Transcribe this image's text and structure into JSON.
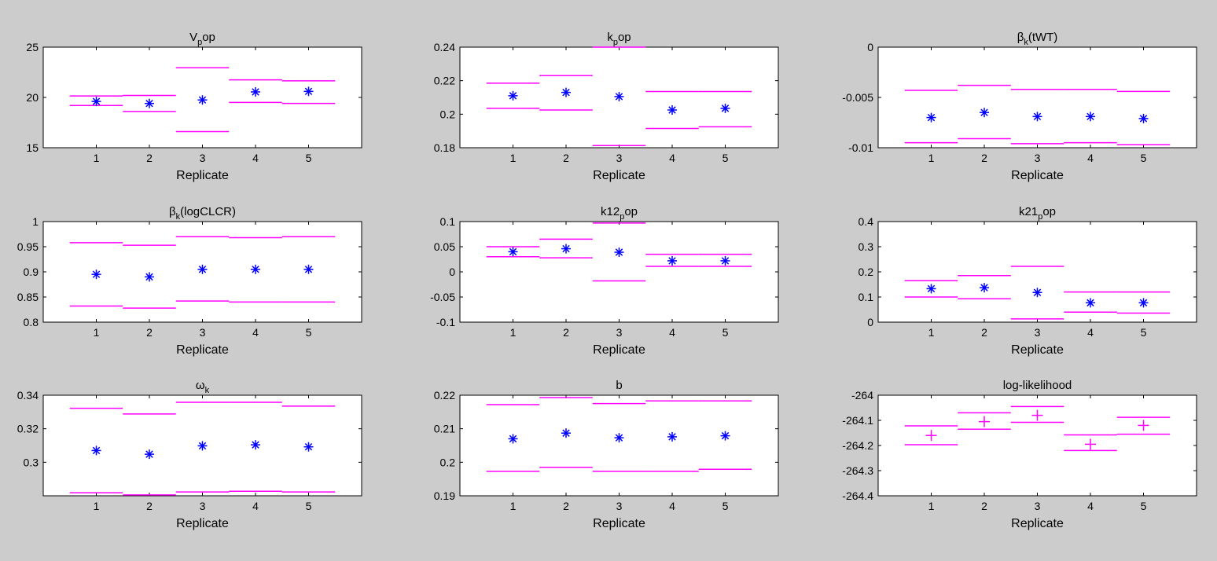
{
  "figure": {
    "background": "#cccccc",
    "axes_color": "#ffffff",
    "estimate_color": "#0000ff",
    "bound_color": "#ff00ff"
  },
  "chart_data": [
    {
      "type": "errorbar",
      "title_main": "V",
      "title_sub": "p",
      "title_rest": "op",
      "xlabel": "Replicate",
      "ylabel": "",
      "categories": [
        "1",
        "2",
        "3",
        "4",
        "5"
      ],
      "ylim": [
        15,
        25
      ],
      "yticks": [
        "15",
        "20",
        "25"
      ],
      "ytick_values": [
        15,
        20,
        25
      ],
      "marker": "asterisk",
      "series": [
        {
          "name": "estimate",
          "values": [
            19.6,
            19.4,
            19.75,
            20.55,
            20.6
          ]
        },
        {
          "name": "lower",
          "values": [
            19.2,
            18.6,
            16.6,
            19.5,
            19.4
          ]
        },
        {
          "name": "upper",
          "values": [
            20.15,
            20.2,
            22.95,
            21.75,
            21.65
          ]
        }
      ]
    },
    {
      "type": "errorbar",
      "title_main": "k",
      "title_sub": "p",
      "title_rest": "op",
      "xlabel": "Replicate",
      "ylabel": "",
      "categories": [
        "1",
        "2",
        "3",
        "4",
        "5"
      ],
      "ylim": [
        0.18,
        0.24
      ],
      "yticks": [
        "0.18",
        "0.2",
        "0.22",
        "0.24"
      ],
      "ytick_values": [
        0.18,
        0.2,
        0.22,
        0.24
      ],
      "marker": "asterisk",
      "series": [
        {
          "name": "estimate",
          "values": [
            0.211,
            0.213,
            0.2105,
            0.2025,
            0.2035
          ]
        },
        {
          "name": "lower",
          "values": [
            0.2035,
            0.2025,
            0.1813,
            0.1915,
            0.1925
          ]
        },
        {
          "name": "upper",
          "values": [
            0.2185,
            0.223,
            0.24,
            0.2135,
            0.2135
          ]
        }
      ]
    },
    {
      "type": "errorbar",
      "title_main": "β",
      "title_sub": "k",
      "title_rest": "(tWT)",
      "xlabel": "Replicate",
      "ylabel": "",
      "categories": [
        "1",
        "2",
        "3",
        "4",
        "5"
      ],
      "ylim": [
        -0.01,
        0
      ],
      "yticks": [
        "-0.01",
        "-0.005",
        "0"
      ],
      "ytick_values": [
        -0.01,
        -0.005,
        0
      ],
      "marker": "asterisk",
      "series": [
        {
          "name": "estimate",
          "values": [
            -0.007,
            -0.0065,
            -0.0069,
            -0.0069,
            -0.0071
          ]
        },
        {
          "name": "lower",
          "values": [
            -0.0095,
            -0.0091,
            -0.0096,
            -0.0095,
            -0.0097
          ]
        },
        {
          "name": "upper",
          "values": [
            -0.0043,
            -0.0038,
            -0.0042,
            -0.0042,
            -0.0044
          ]
        }
      ]
    },
    {
      "type": "errorbar",
      "title_main": "β",
      "title_sub": "k",
      "title_rest": "(logCLCR)",
      "xlabel": "Replicate",
      "ylabel": "",
      "categories": [
        "1",
        "2",
        "3",
        "4",
        "5"
      ],
      "ylim": [
        0.8,
        1
      ],
      "yticks": [
        "0.8",
        "0.85",
        "0.9",
        "0.95",
        "1"
      ],
      "ytick_values": [
        0.8,
        0.85,
        0.9,
        0.95,
        1
      ],
      "marker": "asterisk",
      "series": [
        {
          "name": "estimate",
          "values": [
            0.895,
            0.89,
            0.905,
            0.905,
            0.905
          ]
        },
        {
          "name": "lower",
          "values": [
            0.832,
            0.828,
            0.842,
            0.84,
            0.84
          ]
        },
        {
          "name": "upper",
          "values": [
            0.958,
            0.953,
            0.97,
            0.968,
            0.97
          ]
        }
      ]
    },
    {
      "type": "errorbar",
      "title_main": "k12",
      "title_sub": "p",
      "title_rest": "op",
      "xlabel": "Replicate",
      "ylabel": "",
      "categories": [
        "1",
        "2",
        "3",
        "4",
        "5"
      ],
      "ylim": [
        -0.1,
        0.1
      ],
      "yticks": [
        "-0.1",
        "-0.05",
        "0",
        "0.05",
        "0.1"
      ],
      "ytick_values": [
        -0.1,
        -0.05,
        0,
        0.05,
        0.1
      ],
      "marker": "asterisk",
      "series": [
        {
          "name": "estimate",
          "values": [
            0.04,
            0.046,
            0.039,
            0.022,
            0.022
          ]
        },
        {
          "name": "lower",
          "values": [
            0.03,
            0.028,
            -0.018,
            0.011,
            0.011
          ]
        },
        {
          "name": "upper",
          "values": [
            0.05,
            0.065,
            0.097,
            0.035,
            0.035
          ]
        }
      ]
    },
    {
      "type": "errorbar",
      "title_main": "k21",
      "title_sub": "p",
      "title_rest": "op",
      "xlabel": "Replicate",
      "ylabel": "",
      "categories": [
        "1",
        "2",
        "3",
        "4",
        "5"
      ],
      "ylim": [
        0,
        0.4
      ],
      "yticks": [
        "0",
        "0.1",
        "0.2",
        "0.3",
        "0.4"
      ],
      "ytick_values": [
        0,
        0.1,
        0.2,
        0.3,
        0.4
      ],
      "marker": "asterisk",
      "series": [
        {
          "name": "estimate",
          "values": [
            0.133,
            0.137,
            0.118,
            0.077,
            0.077
          ]
        },
        {
          "name": "lower",
          "values": [
            0.1,
            0.093,
            0.013,
            0.04,
            0.036
          ]
        },
        {
          "name": "upper",
          "values": [
            0.165,
            0.185,
            0.222,
            0.12,
            0.12
          ]
        }
      ]
    },
    {
      "type": "errorbar",
      "title_main": "ω",
      "title_sub": "k",
      "title_rest": "",
      "xlabel": "Replicate",
      "ylabel": "",
      "categories": [
        "1",
        "2",
        "3",
        "4",
        "5"
      ],
      "ylim": [
        0.28,
        0.34
      ],
      "yticks": [
        "0.3",
        "0.32",
        "0.34"
      ],
      "ytick_values": [
        0.3,
        0.32,
        0.34
      ],
      "marker": "asterisk",
      "series": [
        {
          "name": "estimate",
          "values": [
            0.307,
            0.3048,
            0.3098,
            0.3104,
            0.3092
          ]
        },
        {
          "name": "lower",
          "values": [
            0.2818,
            0.2805,
            0.2823,
            0.2827,
            0.2823
          ]
        },
        {
          "name": "upper",
          "values": [
            0.3322,
            0.3288,
            0.3358,
            0.3358,
            0.3335
          ]
        }
      ]
    },
    {
      "type": "errorbar",
      "title_main": "b",
      "title_sub": "",
      "title_rest": "",
      "xlabel": "Replicate",
      "ylabel": "",
      "categories": [
        "1",
        "2",
        "3",
        "4",
        "5"
      ],
      "ylim": [
        0.19,
        0.22
      ],
      "yticks": [
        "0.19",
        "0.2",
        "0.21",
        "0.22"
      ],
      "ytick_values": [
        0.19,
        0.2,
        0.21,
        0.22
      ],
      "marker": "asterisk",
      "series": [
        {
          "name": "estimate",
          "values": [
            0.207,
            0.2087,
            0.2073,
            0.2076,
            0.2079
          ]
        },
        {
          "name": "lower",
          "values": [
            0.1973,
            0.1985,
            0.1973,
            0.1973,
            0.1979
          ]
        },
        {
          "name": "upper",
          "values": [
            0.2172,
            0.2193,
            0.2175,
            0.2183,
            0.2183
          ]
        }
      ]
    },
    {
      "type": "errorbar",
      "title_main": "log-likelihood",
      "title_sub": "",
      "title_rest": "",
      "xlabel": "Replicate",
      "ylabel": "",
      "categories": [
        "1",
        "2",
        "3",
        "4",
        "5"
      ],
      "ylim": [
        -264.4,
        -264
      ],
      "yticks": [
        "-264.4",
        "-264.3",
        "-264.2",
        "-264.1",
        "-264"
      ],
      "ytick_values": [
        -264.4,
        -264.3,
        -264.2,
        -264.1,
        -264
      ],
      "marker": "plus",
      "series": [
        {
          "name": "estimate",
          "values": [
            -264.16,
            -264.105,
            -264.08,
            -264.195,
            -264.12
          ]
        },
        {
          "name": "lower",
          "values": [
            -264.197,
            -264.135,
            -264.108,
            -264.22,
            -264.155
          ]
        },
        {
          "name": "upper",
          "values": [
            -264.122,
            -264.07,
            -264.045,
            -264.158,
            -264.088
          ]
        }
      ]
    }
  ]
}
